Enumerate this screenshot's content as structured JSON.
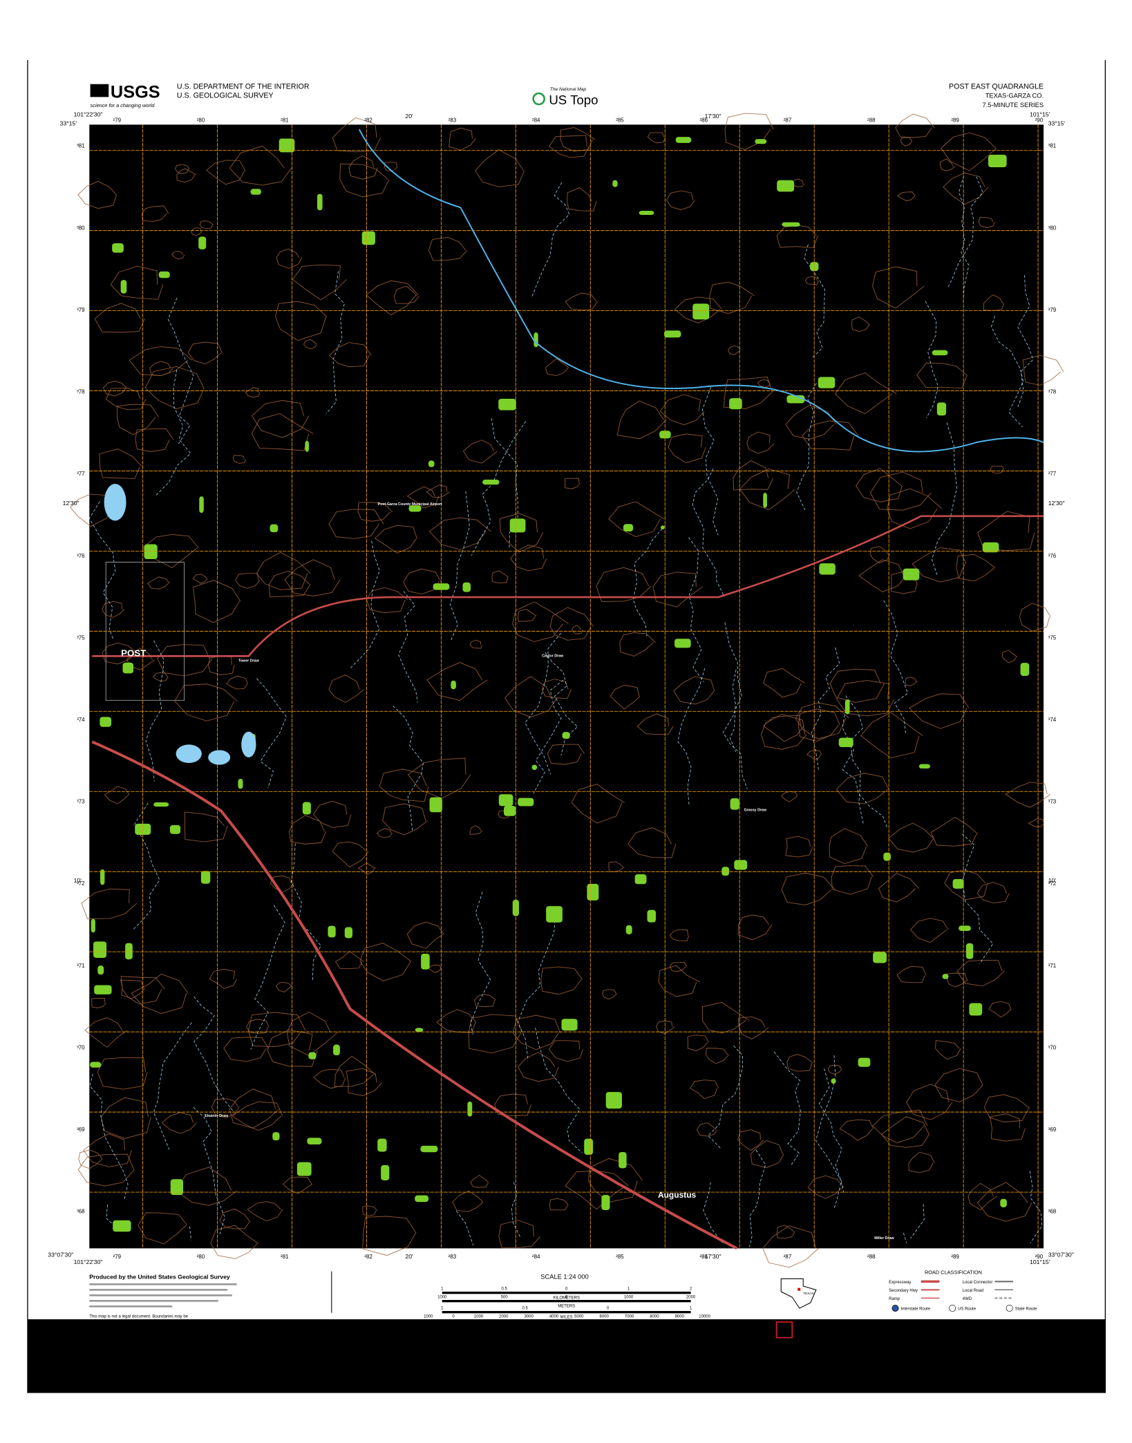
{
  "header": {
    "logo": "USGS",
    "logo_tagline": "science for a changing world",
    "agency_line1": "U.S. DEPARTMENT OF THE INTERIOR",
    "agency_line2": "U.S. GEOLOGICAL SURVEY",
    "center_tagline": "The National Map",
    "center_title": "US Topo",
    "quad_title": "POST EAST QUADRANGLE",
    "quad_state": "TEXAS-GARZA CO.",
    "quad_series": "7.5-MINUTE SERIES"
  },
  "map": {
    "nw_lon": "101°22'30\"",
    "nw_lat": "33°15'",
    "ne_lon": "101°15'",
    "ne_lat": "33°15'",
    "sw_lon": "101°22'30\"",
    "sw_lat": "33°07'30\"",
    "se_lon": "101°15'",
    "se_lat": "33°07'30\"",
    "top_minutes": [
      "20'",
      "17'30\""
    ],
    "side_minutes": [
      "12'30\"",
      "10'"
    ],
    "eastings": [
      "²79",
      "²80",
      "²81",
      "²82",
      "²83",
      "²84",
      "²85",
      "²86",
      "²87",
      "²88",
      "²89",
      "²90"
    ],
    "northings": [
      "³81",
      "³80",
      "³79",
      "³78",
      "³77",
      "³76",
      "³75",
      "³74",
      "³73",
      "³72",
      "³71",
      "³70",
      "³69",
      "³68"
    ],
    "places": [
      "POST",
      "Augustus",
      "Post-Garza County Municipal Airport",
      "Tower Draw",
      "Caylor Draw",
      "Grassy Draw",
      "Miller Draw",
      "Eleanor Draw"
    ]
  },
  "legend": {
    "produced_by": "Produced by the United States Geological Survey",
    "disclaimer": "This map is not a legal document. Boundaries may be",
    "scale": "SCALE 1:24 000",
    "kilometers": "KILOMETERS",
    "km_ticks": [
      "1",
      "0.5",
      "0",
      "1",
      "2"
    ],
    "meters": "METERS",
    "m_ticks": [
      "1000",
      "500",
      "0",
      "1000",
      "2000"
    ],
    "miles": "MILES",
    "mi_ticks": [
      "1",
      "0.5",
      "0",
      "1"
    ],
    "feet": "FEET",
    "ft_ticks": [
      "1000",
      "0",
      "1000",
      "2000",
      "3000",
      "4000",
      "5000",
      "6000",
      "7000",
      "8000",
      "9000",
      "10000"
    ],
    "state": "TEXAS",
    "road_title": "ROAD CLASSIFICATION",
    "roads": [
      "Expressway",
      "Secondary Hwy",
      "Ramp",
      "Local Connector",
      "Local Road",
      "4WD"
    ],
    "routes": [
      "Interstate Route",
      "US Route",
      "State Route"
    ]
  }
}
